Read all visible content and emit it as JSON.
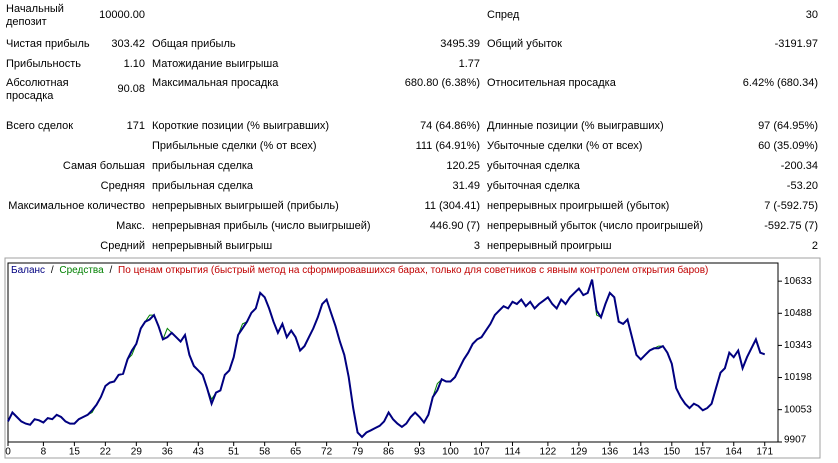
{
  "report": {
    "rows": [
      [
        "Начальный\nдепозит",
        "10000.00",
        null,
        null,
        "Спред",
        "30"
      ],
      [
        "Чистая прибыль",
        "303.42",
        "Общая прибыль",
        "3495.39",
        "Общий убыток",
        "-3191.97"
      ],
      [
        "Прибыльность",
        "1.10",
        "Матожидание выигрыша",
        "1.77",
        null,
        null
      ],
      [
        "Абсолютная\nпросадка",
        "90.08",
        "Максимальная просадка",
        "680.80 (6.38%)",
        "Относительная просадка",
        "6.42% (680.34)"
      ],
      [
        "Всего сделок",
        "171",
        "Короткие позиции (% выигравших)",
        "74 (64.86%)",
        "Длинные позиции (% выигравших)",
        "97 (64.95%)"
      ],
      [
        null,
        null,
        "Прибыльные сделки (% от всех)",
        "111 (64.91%)",
        "Убыточные сделки (% от всех)",
        "60 (35.09%)"
      ],
      [
        "Самая большая",
        null,
        "прибыльная сделка",
        "120.25",
        "убыточная сделка",
        "-200.34"
      ],
      [
        "Средняя",
        null,
        "прибыльная сделка",
        "31.49",
        "убыточная сделка",
        "-53.20"
      ],
      [
        "Максимальное количество",
        null,
        "непрерывных выигрышей (прибыль)",
        "11 (304.41)",
        "непрерывных проигрышей (убыток)",
        "7 (-592.75)"
      ],
      [
        "Макс.",
        null,
        "непрерывная прибыль (число выигрышей)",
        "446.90 (7)",
        "непрерывный убыток (число проигрышей)",
        "-592.75 (7)"
      ],
      [
        "Средний",
        null,
        "непрерывный выигрыш",
        "3",
        "непрерывный проигрыш",
        "2"
      ]
    ]
  },
  "chart_data": {
    "type": "line",
    "separator": "/",
    "mode": "По ценам открытия (быстрый метод на сформировавшихся барах, только для советников с явным контролем открытия баров)",
    "mode_color": "#c00000",
    "xlim": [
      0,
      174
    ],
    "xticks": [
      0,
      8,
      15,
      22,
      29,
      36,
      43,
      51,
      58,
      65,
      72,
      79,
      86,
      93,
      100,
      107,
      114,
      122,
      129,
      136,
      143,
      150,
      157,
      164,
      171
    ],
    "ylim": [
      9907,
      10715
    ],
    "yticks": [
      9907,
      10053,
      10198,
      10343,
      10488,
      10633
    ],
    "series": [
      {
        "name": "Баланс",
        "color": "#000080",
        "values": [
          10000,
          10040,
          10020,
          10000,
          9990,
          9985,
          10010,
          10005,
          9995,
          10015,
          10010,
          10030,
          10020,
          10000,
          9990,
          9990,
          10010,
          10020,
          10030,
          10050,
          10075,
          10110,
          10160,
          10175,
          10180,
          10210,
          10215,
          10280,
          10320,
          10350,
          10420,
          10450,
          10460,
          10480,
          10430,
          10370,
          10380,
          10400,
          10380,
          10360,
          10390,
          10300,
          10250,
          10230,
          10210,
          10150,
          10080,
          10130,
          10140,
          10210,
          10230,
          10290,
          10390,
          10420,
          10450,
          10490,
          10510,
          10580,
          10560,
          10510,
          10450,
          10400,
          10440,
          10380,
          10410,
          10380,
          10320,
          10340,
          10380,
          10420,
          10470,
          10530,
          10550,
          10490,
          10430,
          10360,
          10300,
          10200,
          10060,
          9950,
          9930,
          9950,
          9960,
          9970,
          9980,
          10000,
          10040,
          10010,
          9990,
          9975,
          9990,
          10020,
          10040,
          10020,
          9995,
          10030,
          10110,
          10140,
          10190,
          10180,
          10180,
          10200,
          10240,
          10280,
          10310,
          10350,
          10370,
          10380,
          10410,
          10440,
          10480,
          10500,
          10520,
          10510,
          10540,
          10530,
          10550,
          10520,
          10540,
          10510,
          10530,
          10545,
          10560,
          10530,
          10510,
          10550,
          10530,
          10560,
          10580,
          10600,
          10570,
          10580,
          10640,
          10500,
          10470,
          10530,
          10580,
          10560,
          10450,
          10440,
          10460,
          10380,
          10300,
          10280,
          10300,
          10320,
          10330,
          10330,
          10340,
          10310,
          10260,
          10150,
          10110,
          10080,
          10060,
          10080,
          10070,
          10050,
          10060,
          10080,
          10150,
          10220,
          10240,
          10310,
          10290,
          10320,
          10240,
          10290,
          10330,
          10370,
          10310,
          10303
        ]
      },
      {
        "name": "Средства",
        "color": "#008000",
        "values": [
          10000,
          10040,
          10020,
          10000,
          9990,
          9985,
          10010,
          10005,
          9995,
          10015,
          10010,
          10030,
          10020,
          10000,
          9990,
          9990,
          10010,
          10020,
          10030,
          10040,
          10075,
          10110,
          10160,
          10175,
          10180,
          10210,
          10215,
          10280,
          10300,
          10350,
          10420,
          10450,
          10480,
          10480,
          10430,
          10370,
          10420,
          10400,
          10380,
          10360,
          10390,
          10300,
          10250,
          10230,
          10210,
          10150,
          10100,
          10130,
          10140,
          10210,
          10230,
          10290,
          10390,
          10440,
          10450,
          10490,
          10510,
          10580,
          10560,
          10510,
          10450,
          10400,
          10440,
          10380,
          10410,
          10380,
          10320,
          10340,
          10380,
          10420,
          10470,
          10530,
          10550,
          10490,
          10430,
          10360,
          10300,
          10200,
          10060,
          9950,
          9930,
          9950,
          9960,
          9970,
          9980,
          10000,
          10040,
          10010,
          9990,
          9975,
          9990,
          10020,
          10040,
          10020,
          9995,
          10030,
          10110,
          10170,
          10190,
          10180,
          10180,
          10200,
          10240,
          10280,
          10310,
          10350,
          10370,
          10380,
          10410,
          10440,
          10480,
          10500,
          10520,
          10510,
          10540,
          10530,
          10550,
          10520,
          10540,
          10510,
          10530,
          10545,
          10560,
          10530,
          10510,
          10550,
          10530,
          10560,
          10580,
          10600,
          10570,
          10580,
          10640,
          10480,
          10470,
          10530,
          10580,
          10560,
          10450,
          10440,
          10460,
          10380,
          10300,
          10280,
          10300,
          10320,
          10330,
          10340,
          10340,
          10310,
          10260,
          10150,
          10110,
          10080,
          10060,
          10080,
          10070,
          10050,
          10060,
          10080,
          10150,
          10220,
          10240,
          10310,
          10290,
          10320,
          10240,
          10290,
          10330,
          10370,
          10310,
          10303
        ]
      }
    ]
  }
}
